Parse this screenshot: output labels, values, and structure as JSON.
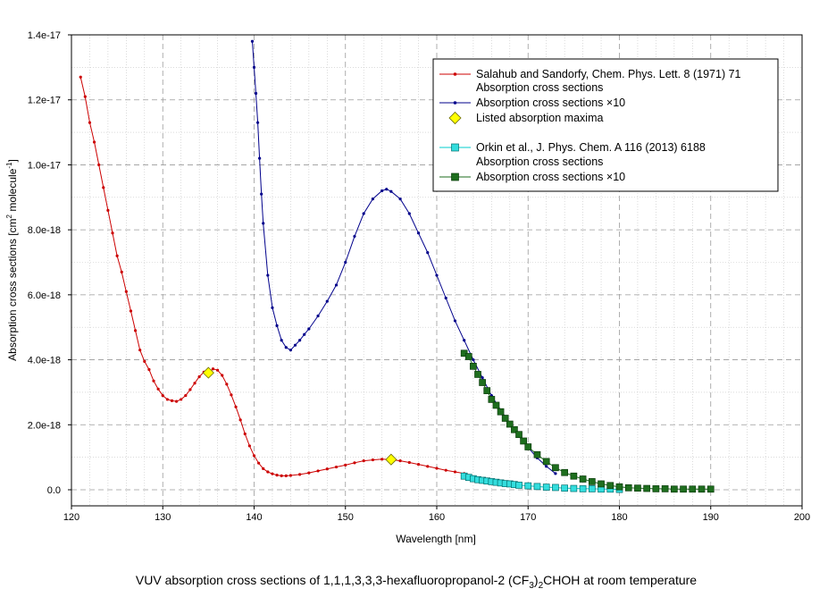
{
  "chart_data": {
    "type": "line",
    "title": "VUV absorption cross sections of 1,1,1,3,3,3-hexafluoropropanol-2 (CF3)2CHOH at room temperature",
    "caption": {
      "part1": "VUV absorption cross sections of 1,1,1,3,3,3-hexafluoropropanol-2 (CF",
      "sub1": "3",
      "part2": ")",
      "sub2": "2",
      "part3": "CHOH at room temperature"
    },
    "xlabel": "Wavelength [nm]",
    "ylabel": {
      "part1": "Absorption cross sections [cm",
      "sup1": "2",
      "part2": " molecule",
      "sup2": "-1",
      "part3": "]"
    },
    "xlim": [
      120,
      200
    ],
    "ylim": [
      0,
      1.4e-17
    ],
    "xticks": [
      120,
      130,
      140,
      150,
      160,
      170,
      180,
      190,
      200
    ],
    "yticks": [
      0,
      2e-18,
      4e-18,
      6e-18,
      8e-18,
      1e-17,
      1.2e-17,
      1.4e-17
    ],
    "ytick_labels": [
      "0.0",
      "2.0e-18",
      "4.0e-18",
      "6.0e-18",
      "8.0e-18",
      "1.0e-17",
      "1.2e-17",
      "1.4e-17"
    ],
    "grid": true,
    "legend_position": "top-right",
    "legend": {
      "group1_title": "Salahub and Sandorfy, Chem. Phys. Lett. 8 (1971) 71",
      "group1_s1": "Absorption cross sections",
      "group1_s2": "Absorption cross sections ×10",
      "group1_s3": "Listed absorption maxima",
      "group2_title": "Orkin et al., J. Phys. Chem. A 116 (2013) 6188",
      "group2_s1": "Absorption cross sections",
      "group2_s2": "Absorption cross sections ×10"
    },
    "series": [
      {
        "key": "salahub_xs",
        "color": "#cc0000",
        "marker": "dot",
        "x": [
          121,
          121.5,
          122,
          122.5,
          123,
          123.5,
          124,
          124.5,
          125,
          125.5,
          126,
          126.5,
          127,
          127.5,
          128,
          128.5,
          129,
          129.5,
          130,
          130.5,
          131,
          131.5,
          132,
          132.5,
          133,
          133.5,
          134,
          134.5,
          135,
          135.5,
          136,
          136.5,
          137,
          137.5,
          138,
          138.5,
          139,
          139.5,
          140,
          140.5,
          141,
          141.5,
          142,
          142.5,
          143,
          143.5,
          144,
          145,
          146,
          147,
          148,
          149,
          150,
          151,
          152,
          153,
          154,
          155,
          156,
          157,
          158,
          159,
          160,
          161,
          162,
          163
        ],
        "y": [
          1.27e-17,
          1.21e-17,
          1.13e-17,
          1.07e-17,
          1e-17,
          9.3e-18,
          8.6e-18,
          7.9e-18,
          7.2e-18,
          6.7e-18,
          6.1e-18,
          5.5e-18,
          4.9e-18,
          4.3e-18,
          3.95e-18,
          3.7e-18,
          3.35e-18,
          3.1e-18,
          2.9e-18,
          2.78e-18,
          2.74e-18,
          2.72e-18,
          2.78e-18,
          2.9e-18,
          3.08e-18,
          3.28e-18,
          3.48e-18,
          3.62e-18,
          3.62e-18,
          3.72e-18,
          3.68e-18,
          3.52e-18,
          3.25e-18,
          2.92e-18,
          2.55e-18,
          2.15e-18,
          1.72e-18,
          1.35e-18,
          1.05e-18,
          8.2e-19,
          6.5e-19,
          5.5e-19,
          4.9e-19,
          4.5e-19,
          4.3e-19,
          4.3e-19,
          4.4e-19,
          4.7e-19,
          5.2e-19,
          5.8e-19,
          6.4e-19,
          7e-19,
          7.6e-19,
          8.3e-19,
          8.9e-19,
          9.2e-19,
          9.4e-19,
          9.3e-19,
          8.9e-19,
          8.4e-19,
          7.8e-19,
          7.2e-19,
          6.6e-19,
          6e-19,
          5.5e-19,
          5e-19
        ]
      },
      {
        "key": "salahub_x10",
        "color": "#00008b",
        "marker": "dot",
        "x": [
          139.8,
          140,
          140.2,
          140.4,
          140.6,
          140.8,
          141,
          141.5,
          142,
          142.5,
          143,
          143.5,
          144,
          144.5,
          145,
          145.5,
          146,
          147,
          148,
          149,
          150,
          151,
          152,
          153,
          154,
          154.5,
          155,
          156,
          157,
          158,
          159,
          160,
          161,
          162,
          163,
          164,
          165,
          166,
          167,
          168,
          169,
          170,
          171,
          172,
          173
        ],
        "y": [
          1.38e-17,
          1.3e-17,
          1.22e-17,
          1.13e-17,
          1.02e-17,
          9.1e-18,
          8.2e-18,
          6.6e-18,
          5.6e-18,
          5.05e-18,
          4.6e-18,
          4.38e-18,
          4.3e-18,
          4.45e-18,
          4.6e-18,
          4.78e-18,
          4.95e-18,
          5.35e-18,
          5.8e-18,
          6.3e-18,
          7e-18,
          7.8e-18,
          8.5e-18,
          8.95e-18,
          9.2e-18,
          9.25e-18,
          9.18e-18,
          8.95e-18,
          8.5e-18,
          7.9e-18,
          7.3e-18,
          6.6e-18,
          5.9e-18,
          5.2e-18,
          4.6e-18,
          4e-18,
          3.45e-18,
          2.9e-18,
          2.45e-18,
          2.05e-18,
          1.65e-18,
          1.3e-18,
          9.8e-19,
          7.2e-19,
          5e-19
        ]
      },
      {
        "key": "listed_maxima",
        "color": "#ffff00",
        "marker": "diamond",
        "x": [
          135,
          155
        ],
        "y": [
          3.6e-18,
          9.3e-19
        ]
      },
      {
        "key": "orkin_xs",
        "color": "#00cccc",
        "marker": "square",
        "x": [
          163,
          163.5,
          164,
          164.5,
          165,
          165.5,
          166,
          166.5,
          167,
          167.5,
          168,
          168.5,
          169,
          170,
          171,
          172,
          173,
          174,
          175,
          176,
          177,
          178,
          179,
          180
        ],
        "y": [
          4.2e-19,
          3.8e-19,
          3.4e-19,
          3.1e-19,
          2.9e-19,
          2.7e-19,
          2.5e-19,
          2.3e-19,
          2.1e-19,
          1.9e-19,
          1.8e-19,
          1.6e-19,
          1.4e-19,
          1.2e-19,
          1e-19,
          8e-20,
          7e-20,
          5e-20,
          4e-20,
          3e-20,
          3e-20,
          2e-20,
          2e-20,
          1e-20
        ]
      },
      {
        "key": "orkin_x10",
        "color": "#1e6e1e",
        "marker": "square",
        "x": [
          163,
          163.5,
          164,
          164.5,
          165,
          165.5,
          166,
          166.5,
          167,
          167.5,
          168,
          168.5,
          169,
          169.5,
          170,
          171,
          172,
          173,
          174,
          175,
          176,
          177,
          178,
          179,
          180,
          181,
          182,
          183,
          184,
          185,
          186,
          187,
          188,
          189,
          190
        ],
        "y": [
          4.2e-18,
          4.1e-18,
          3.8e-18,
          3.55e-18,
          3.3e-18,
          3.05e-18,
          2.78e-18,
          2.6e-18,
          2.4e-18,
          2.2e-18,
          2.02e-18,
          1.85e-18,
          1.7e-18,
          1.5e-18,
          1.32e-18,
          1.08e-18,
          8.7e-19,
          6.8e-19,
          5.3e-19,
          4.2e-19,
          3.3e-19,
          2.5e-19,
          1.8e-19,
          1.3e-19,
          9e-20,
          6e-20,
          5e-20,
          4e-20,
          3e-20,
          3e-20,
          2e-20,
          2e-20,
          2e-20,
          2e-20,
          2e-20
        ]
      }
    ]
  }
}
